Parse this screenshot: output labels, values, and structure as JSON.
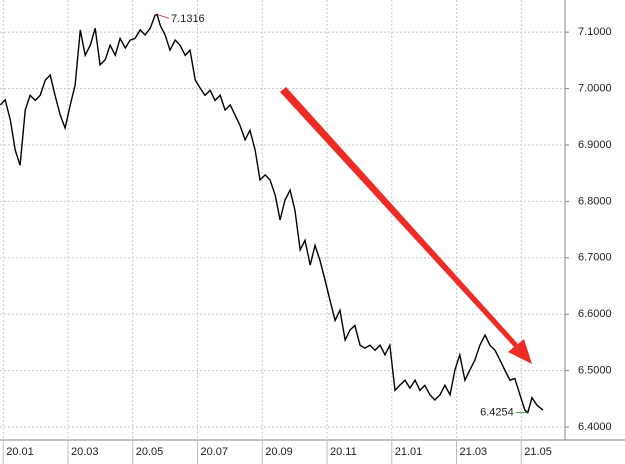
{
  "chart_data": {
    "type": "line",
    "x": [
      -0.09,
      0.06,
      0.22,
      0.37,
      0.52,
      0.68,
      0.83,
      0.99,
      1.14,
      1.3,
      1.45,
      1.6,
      1.76,
      1.91,
      2.07,
      2.22,
      2.38,
      2.53,
      2.69,
      2.84,
      2.99,
      3.15,
      3.3,
      3.46,
      3.61,
      3.77,
      3.92,
      4.07,
      4.23,
      4.38,
      4.54,
      4.69,
      4.75,
      4.85,
      5.0,
      5.15,
      5.31,
      5.46,
      5.62,
      5.77,
      5.93,
      6.08,
      6.23,
      6.39,
      6.54,
      6.7,
      6.85,
      7.01,
      7.16,
      7.31,
      7.47,
      7.62,
      7.78,
      7.93,
      8.09,
      8.24,
      8.4,
      8.55,
      8.7,
      8.86,
      9.01,
      9.17,
      9.32,
      9.48,
      9.63,
      9.78,
      9.94,
      10.09,
      10.25,
      10.4,
      10.56,
      10.71,
      10.86,
      11.02,
      11.17,
      11.33,
      11.48,
      11.64,
      11.79,
      11.94,
      12.1,
      12.25,
      12.41,
      12.56,
      12.72,
      12.87,
      13.02,
      13.18,
      13.33,
      13.49,
      13.64,
      13.8,
      13.95,
      14.1,
      14.26,
      14.41,
      14.57,
      14.72,
      14.88,
      15.03,
      15.19,
      15.34,
      15.49,
      15.65,
      15.8,
      15.96,
      16.11,
      16.2,
      16.33,
      16.48,
      16.67
    ],
    "series": [
      {
        "color": "#000000",
        "values": [
          6.971,
          6.98,
          6.944,
          6.891,
          6.864,
          6.962,
          6.988,
          6.979,
          6.988,
          7.015,
          7.024,
          6.988,
          6.953,
          6.93,
          6.971,
          7.006,
          7.104,
          7.059,
          7.077,
          7.107,
          7.042,
          7.051,
          7.077,
          7.059,
          7.089,
          7.072,
          7.086,
          7.089,
          7.104,
          7.095,
          7.107,
          7.13,
          7.1316,
          7.112,
          7.095,
          7.068,
          7.086,
          7.077,
          7.059,
          7.068,
          7.015,
          7.001,
          6.988,
          6.997,
          6.979,
          6.988,
          6.962,
          6.971,
          6.953,
          6.935,
          6.909,
          6.926,
          6.891,
          6.838,
          6.847,
          6.838,
          6.811,
          6.767,
          6.802,
          6.82,
          6.784,
          6.714,
          6.731,
          6.687,
          6.722,
          6.696,
          6.66,
          6.625,
          6.589,
          6.607,
          6.554,
          6.572,
          6.58,
          6.545,
          6.54,
          6.545,
          6.536,
          6.545,
          6.528,
          6.545,
          6.465,
          6.474,
          6.483,
          6.469,
          6.483,
          6.465,
          6.474,
          6.457,
          6.448,
          6.457,
          6.474,
          6.457,
          6.501,
          6.528,
          6.483,
          6.501,
          6.519,
          6.545,
          6.563,
          6.545,
          6.536,
          6.519,
          6.501,
          6.483,
          6.486,
          6.457,
          6.43,
          6.4254,
          6.452,
          6.439,
          6.43
        ]
      }
    ],
    "xlim": [
      -0.1,
      17.35
    ],
    "xticks": [
      {
        "value": 0,
        "label": "20.01"
      },
      {
        "value": 2,
        "label": "20.03"
      },
      {
        "value": 4,
        "label": "20.05"
      },
      {
        "value": 6,
        "label": "20.07"
      },
      {
        "value": 8,
        "label": "20.09"
      },
      {
        "value": 10,
        "label": "20.11"
      },
      {
        "value": 12,
        "label": "21.01"
      },
      {
        "value": 14,
        "label": "21.03"
      },
      {
        "value": 16,
        "label": "21.05"
      }
    ],
    "ylim": [
      6.377,
      7.157
    ],
    "yticks": [
      {
        "value": 6.4,
        "label": "6.4000"
      },
      {
        "value": 6.5,
        "label": "6.5000"
      },
      {
        "value": 6.6,
        "label": "6.6000"
      },
      {
        "value": 6.7,
        "label": "6.7000"
      },
      {
        "value": 6.8,
        "label": "6.8000"
      },
      {
        "value": 6.9,
        "label": "6.9000"
      },
      {
        "value": 7.0,
        "label": "7.0000"
      },
      {
        "value": 7.1,
        "label": "7.1000"
      }
    ],
    "grid": true,
    "annotations": [
      {
        "text": "7.1316",
        "x": 4.75,
        "y": 7.1316,
        "color": "#c0282d",
        "side": "right"
      },
      {
        "text": "6.4254",
        "x": 16.2,
        "y": 6.4254,
        "color": "#1e8a1e",
        "side": "left"
      }
    ]
  }
}
